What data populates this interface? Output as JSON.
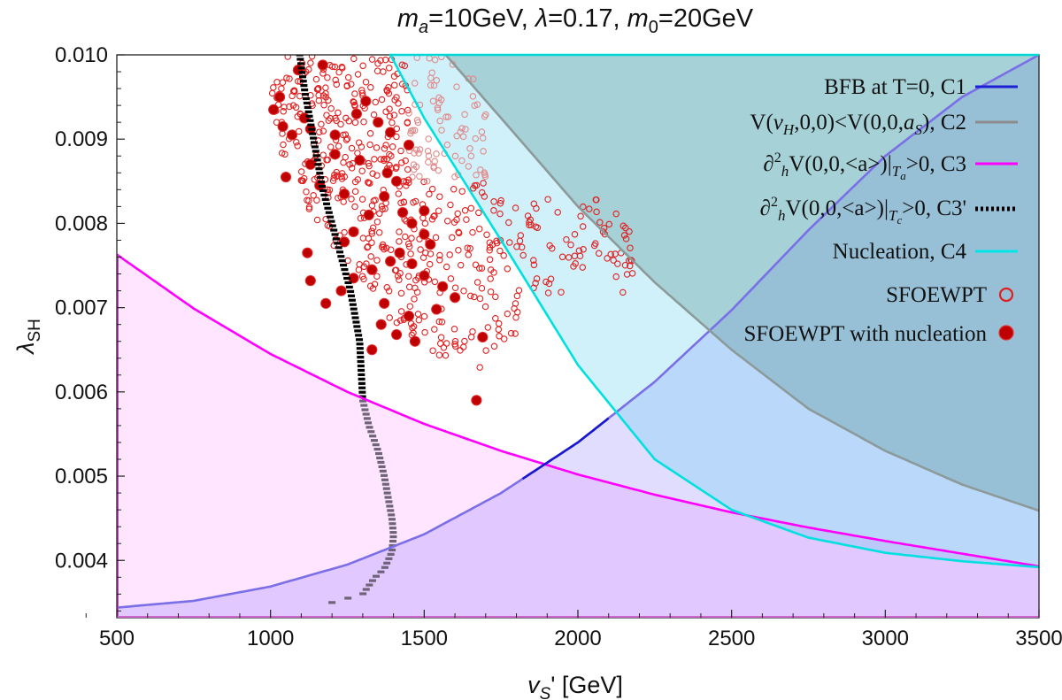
{
  "chart_data": {
    "type": "scatter",
    "title": "m_a=10GeV, λ=0.17, m_0=20GeV",
    "title_parts": {
      "ma_sym": "m",
      "ma_sub": "a",
      "ma_val": "=10GeV, ",
      "lam_sym": "λ",
      "lam_val": "=0.17, ",
      "m0_sym": "m",
      "m0_sub": "0",
      "m0_val": "=20GeV"
    },
    "xlabel": "v_S' [GeV]",
    "xlabel_parts": {
      "sym": "v",
      "sub": "S",
      "rest": "' [GeV]"
    },
    "ylabel": "λ_SH",
    "ylabel_parts": {
      "sym": "λ",
      "sub": "SH"
    },
    "xlim": [
      500,
      3500
    ],
    "ylim": [
      0.00332,
      0.01
    ],
    "x_ticks": [
      500,
      1000,
      1500,
      2000,
      2500,
      3000,
      3500
    ],
    "x_tick_labels": [
      "500",
      "1000",
      "1500",
      "2000",
      "2500",
      "3000",
      "3500"
    ],
    "y_ticks": [
      0.004,
      0.005,
      0.006,
      0.007,
      0.008,
      0.009,
      0.01
    ],
    "y_tick_labels": [
      "0.004",
      "0.005",
      "0.006",
      "0.007",
      "0.008",
      "0.009",
      "0.010"
    ],
    "legend": [
      {
        "key": "c1",
        "label": "BFB at T=0, C1",
        "style": "line",
        "color": "#1f1fd6"
      },
      {
        "key": "c2",
        "label": "V(v_H,0,0)<V(0,0,a_S), C2",
        "style": "line",
        "color": "#8c8c8c",
        "parts": {
          "a": "V(",
          "v": "v",
          "vsub": "H",
          "b": ",0,0)<V(0,0,",
          "s": "a",
          "ssub": "S",
          "c": "), C2"
        }
      },
      {
        "key": "c3",
        "label": "∂²_h V(0,0,<a>)|_Ta>0, C3",
        "style": "line",
        "color": "#ff00ff",
        "parts": {
          "d": "∂",
          "two": "2",
          "h": "h",
          "a": "V(0,0,<a>)|",
          "t": "T",
          "tsub": "a",
          "b": ">0, C3"
        }
      },
      {
        "key": "c3p",
        "label": "∂²_h V(0,0,<a>)|_Tc>0, C3'",
        "style": "dotted",
        "color": "#000000",
        "parts": {
          "d": "∂",
          "two": "2",
          "h": "h",
          "a": "V(0,0,<a>)|",
          "t": "T",
          "tsub": "c",
          "b": ">0, C3'"
        }
      },
      {
        "key": "c4",
        "label": "Nucleation, C4",
        "style": "line",
        "color": "#00e5e5"
      },
      {
        "key": "sfo",
        "label": "SFOEWPT",
        "style": "open-circle",
        "color": "#e02020"
      },
      {
        "key": "sfon",
        "label": "SFOEWPT with nucleation",
        "style": "filled-circle",
        "color": "#c00000"
      }
    ],
    "series": [
      {
        "name": "BFB at T=0, C1",
        "x": [
          500,
          750,
          1000,
          1250,
          1500,
          1750,
          2000,
          2250,
          2500,
          2750,
          3000,
          3250,
          3500
        ],
        "y": [
          0.00344,
          0.00352,
          0.00369,
          0.00395,
          0.00431,
          0.0048,
          0.0054,
          0.00612,
          0.00697,
          0.00792,
          0.0088,
          0.0095,
          0.01
        ]
      },
      {
        "name": "V(v_H,0,0)<V(0,0,a_S), C2",
        "x": [
          1570,
          1750,
          2000,
          2250,
          2500,
          2750,
          3000,
          3250,
          3500
        ],
        "y": [
          0.01,
          0.00925,
          0.0082,
          0.0073,
          0.0065,
          0.0058,
          0.0053,
          0.0049,
          0.00459
        ]
      },
      {
        "name": "∂²_h V(0,0,<a>)|_Ta>0, C3",
        "x": [
          500,
          750,
          1000,
          1250,
          1500,
          1750,
          2000,
          2250,
          2500,
          2750,
          3000,
          3250,
          3500
        ],
        "y": [
          0.00763,
          0.00699,
          0.00645,
          0.006,
          0.00562,
          0.0053,
          0.00502,
          0.00478,
          0.00457,
          0.00439,
          0.00423,
          0.00408,
          0.00393
        ]
      },
      {
        "name": "∂²_h V(0,0,<a>)|_Tc>0, C3'",
        "x": [
          1095,
          1110,
          1130,
          1150,
          1170,
          1200,
          1230,
          1260,
          1290,
          1300,
          1320,
          1350,
          1370,
          1385,
          1395,
          1400,
          1395,
          1370,
          1340,
          1300,
          1200
        ],
        "y": [
          0.01,
          0.0096,
          0.0092,
          0.0088,
          0.0084,
          0.008,
          0.0076,
          0.0072,
          0.0066,
          0.0059,
          0.0056,
          0.0053,
          0.005,
          0.0047,
          0.0045,
          0.0043,
          0.0041,
          0.0039,
          0.0038,
          0.0036,
          0.0035
        ]
      },
      {
        "name": "Nucleation, C4",
        "x": [
          1390,
          1500,
          1750,
          2000,
          2250,
          2500,
          2750,
          3000,
          3250,
          3500
        ],
        "y": [
          0.01,
          0.00925,
          0.0078,
          0.00632,
          0.0052,
          0.0046,
          0.00427,
          0.00409,
          0.00399,
          0.00392
        ]
      },
      {
        "name": "SFOEWPT with nucleation",
        "x": [
          1090,
          1170,
          1030,
          1110,
          1070,
          1210,
          1130,
          1050,
          1160,
          1240,
          1280,
          1310,
          1350,
          1290,
          1380,
          1410,
          1370,
          1430,
          1460,
          1500,
          1520,
          1420,
          1390,
          1330,
          1270,
          1230,
          1180,
          1120,
          1240,
          1460,
          1500,
          1560,
          1600,
          1540,
          1450,
          1360,
          1410,
          1470,
          1330,
          1690,
          1670,
          1040,
          1130,
          1010,
          1210,
          1450,
          1390,
          1320,
          1270,
          1130,
          1500,
          1370
        ],
        "y": [
          0.00982,
          0.00988,
          0.0095,
          0.00925,
          0.00905,
          0.00882,
          0.0087,
          0.00855,
          0.00845,
          0.00835,
          0.0093,
          0.00945,
          0.0092,
          0.00875,
          0.0086,
          0.0085,
          0.00832,
          0.00813,
          0.008,
          0.00787,
          0.00775,
          0.00765,
          0.00755,
          0.00745,
          0.00735,
          0.0072,
          0.00705,
          0.00765,
          0.00778,
          0.00752,
          0.00738,
          0.00725,
          0.00712,
          0.00698,
          0.0069,
          0.0068,
          0.00668,
          0.0066,
          0.0065,
          0.00665,
          0.0059,
          0.00915,
          0.00912,
          0.00935,
          0.00905,
          0.00893,
          0.00908,
          0.0081,
          0.0079,
          0.00732,
          0.00815,
          0.00705
        ]
      },
      {
        "name": "SFOEWPT",
        "note": "approximately 650 open circles scattered over vS' 960–2200 GeV, λSH 0.0062–0.0100 (representative sample)",
        "x": [
          1010,
          1040,
          1080,
          1120,
          1150,
          1190,
          1230,
          1270,
          1310,
          1350,
          1390,
          1430,
          1470,
          1510,
          1550,
          1590,
          1630,
          1670,
          1710,
          1760,
          1800,
          1850,
          1900,
          1950,
          2000,
          2050,
          2100,
          2150,
          2200
        ],
        "y": [
          0.0092,
          0.0088,
          0.0085,
          0.0082,
          0.008,
          0.0078,
          0.0076,
          0.0074,
          0.0072,
          0.007,
          0.0068,
          0.0067,
          0.0066,
          0.0065,
          0.0064,
          0.0064,
          0.0063,
          0.0062,
          0.0063,
          0.0065,
          0.0067,
          0.0069,
          0.007,
          0.0072,
          0.0074,
          0.0075,
          0.0073,
          0.0071,
          0.0072
        ]
      }
    ]
  }
}
